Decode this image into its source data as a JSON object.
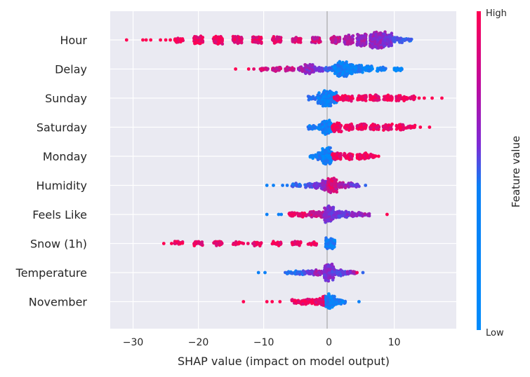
{
  "chart_data": {
    "type": "scatter",
    "subtype": "shap-beeswarm",
    "title": "",
    "xlabel": "SHAP value (impact on model output)",
    "ylabel": "",
    "xlim": [
      -33.5,
      19.5
    ],
    "xticks": [
      -30,
      -20,
      -10,
      0,
      10
    ],
    "xtick_labels": [
      "−30",
      "−20",
      "−10",
      "0",
      "10"
    ],
    "grid": true,
    "colorbar": {
      "title": "Feature value",
      "high_label": "High",
      "low_label": "Low",
      "high_color": "#ff0052",
      "low_color": "#008bfb",
      "mid_color": "#7d2bd6"
    },
    "features": [
      {
        "name": "Hour",
        "range": [
          -31.0,
          12.0
        ],
        "sparse_points": [
          {
            "x": -31.0,
            "v": 1
          },
          {
            "x": -28.5,
            "v": 1
          },
          {
            "x": -28.0,
            "v": 1
          },
          {
            "x": -27.3,
            "v": 1
          },
          {
            "x": -25.8,
            "v": 1
          },
          {
            "x": -25.0,
            "v": 1
          },
          {
            "x": -24.3,
            "v": 1
          },
          {
            "x": -23.6,
            "v": 1
          }
        ],
        "density": [
          {
            "x": -23,
            "c": 4,
            "v": 0.95
          },
          {
            "x": -20,
            "c": 7,
            "v": 0.95
          },
          {
            "x": -17,
            "c": 7,
            "v": 0.95
          },
          {
            "x": -14,
            "c": 6,
            "v": 0.92
          },
          {
            "x": -11,
            "c": 6,
            "v": 0.9
          },
          {
            "x": -8,
            "c": 5,
            "v": 0.88
          },
          {
            "x": -5,
            "c": 5,
            "v": 0.85
          },
          {
            "x": -2,
            "c": 5,
            "v": 0.8
          },
          {
            "x": 1,
            "c": 6,
            "v": 0.75
          },
          {
            "x": 3,
            "c": 8,
            "v": 0.65
          },
          {
            "x": 5,
            "c": 12,
            "v": 0.6
          },
          {
            "x": 7,
            "c": 16,
            "v": 0.6
          },
          {
            "x": 8,
            "c": 17,
            "v": 0.55
          },
          {
            "x": 9,
            "c": 12,
            "v": 0.5
          },
          {
            "x": 10.5,
            "c": 5,
            "v": 0.3
          },
          {
            "x": 12,
            "c": 2,
            "v": 0.2
          }
        ]
      },
      {
        "name": "Delay",
        "range": [
          -14.3,
          10.6
        ],
        "sparse_points": [
          {
            "x": -14.3,
            "v": 1
          },
          {
            "x": -12.3,
            "v": 1
          },
          {
            "x": -11.5,
            "v": 0.9
          },
          {
            "x": -10.5,
            "v": 0.9
          }
        ],
        "density": [
          {
            "x": -10,
            "c": 2,
            "v": 0.85
          },
          {
            "x": -8,
            "c": 3,
            "v": 0.8
          },
          {
            "x": -6,
            "c": 3,
            "v": 0.75
          },
          {
            "x": -4,
            "c": 4,
            "v": 0.6
          },
          {
            "x": -3,
            "c": 9,
            "v": 0.55
          },
          {
            "x": -1.5,
            "c": 3,
            "v": 0.4
          },
          {
            "x": 0,
            "c": 3,
            "v": 0.2
          },
          {
            "x": 1.5,
            "c": 8,
            "v": 0.05
          },
          {
            "x": 2,
            "c": 14,
            "v": 0.05
          },
          {
            "x": 3,
            "c": 10,
            "v": 0.05
          },
          {
            "x": 4.5,
            "c": 6,
            "v": 0.05
          },
          {
            "x": 6,
            "c": 4,
            "v": 0.05
          },
          {
            "x": 8,
            "c": 3,
            "v": 0.05
          },
          {
            "x": 10.5,
            "c": 2,
            "v": 0.05
          }
        ]
      },
      {
        "name": "Sunday",
        "range": [
          -2.8,
          17.3
        ],
        "sparse_points": [
          {
            "x": 13.8,
            "v": 1
          },
          {
            "x": 14.6,
            "v": 1
          },
          {
            "x": 15.8,
            "v": 1
          },
          {
            "x": 17.3,
            "v": 1
          }
        ],
        "density": [
          {
            "x": -2.5,
            "c": 2,
            "v": 0.2
          },
          {
            "x": -1,
            "c": 10,
            "v": 0.05
          },
          {
            "x": -0.3,
            "c": 18,
            "v": 0.05
          },
          {
            "x": 0.5,
            "c": 10,
            "v": 0.05
          },
          {
            "x": 1.5,
            "c": 4,
            "v": 0.95
          },
          {
            "x": 3,
            "c": 5,
            "v": 0.95
          },
          {
            "x": 5,
            "c": 5,
            "v": 0.95
          },
          {
            "x": 7,
            "c": 5,
            "v": 0.95
          },
          {
            "x": 9,
            "c": 5,
            "v": 0.95
          },
          {
            "x": 11,
            "c": 4,
            "v": 0.95
          },
          {
            "x": 12.5,
            "c": 3,
            "v": 0.95
          }
        ]
      },
      {
        "name": "Saturday",
        "range": [
          -2.8,
          15.4
        ],
        "sparse_points": [
          {
            "x": 13.1,
            "v": 1
          },
          {
            "x": 14.0,
            "v": 1
          },
          {
            "x": 15.4,
            "v": 1
          }
        ],
        "density": [
          {
            "x": -2.5,
            "c": 3,
            "v": 0.1
          },
          {
            "x": -1,
            "c": 6,
            "v": 0.05
          },
          {
            "x": -0.3,
            "c": 14,
            "v": 0.05
          },
          {
            "x": 0.3,
            "c": 6,
            "v": 0.05
          },
          {
            "x": 1.2,
            "c": 8,
            "v": 0.95
          },
          {
            "x": 3,
            "c": 5,
            "v": 0.95
          },
          {
            "x": 5,
            "c": 5,
            "v": 0.95
          },
          {
            "x": 7,
            "c": 5,
            "v": 0.95
          },
          {
            "x": 9,
            "c": 5,
            "v": 0.95
          },
          {
            "x": 11,
            "c": 4,
            "v": 0.95
          },
          {
            "x": 12.5,
            "c": 2,
            "v": 0.95
          }
        ]
      },
      {
        "name": "Monday",
        "range": [
          -2.5,
          7.6
        ],
        "sparse_points": [
          {
            "x": 7.6,
            "v": 1
          }
        ],
        "density": [
          {
            "x": -2.2,
            "c": 3,
            "v": 0.05
          },
          {
            "x": -1,
            "c": 6,
            "v": 0.05
          },
          {
            "x": -0.3,
            "c": 16,
            "v": 0.05
          },
          {
            "x": 0.3,
            "c": 6,
            "v": 0.05
          },
          {
            "x": 1.2,
            "c": 5,
            "v": 0.95
          },
          {
            "x": 3,
            "c": 5,
            "v": 0.95
          },
          {
            "x": 5,
            "c": 5,
            "v": 0.95
          },
          {
            "x": 6.5,
            "c": 3,
            "v": 0.95
          }
        ]
      },
      {
        "name": "Humidity",
        "range": [
          -9.5,
          5.6
        ],
        "sparse_points": [
          {
            "x": -9.5,
            "v": 0.05
          },
          {
            "x": -8.5,
            "v": 0.05
          },
          {
            "x": -7.1,
            "v": 0.1
          },
          {
            "x": -6.4,
            "v": 0.1
          },
          {
            "x": 5.6,
            "v": 0.2
          }
        ],
        "density": [
          {
            "x": -5,
            "c": 3,
            "v": 0.2
          },
          {
            "x": -3,
            "c": 3,
            "v": 0.3
          },
          {
            "x": -1.5,
            "c": 5,
            "v": 0.5
          },
          {
            "x": -0.3,
            "c": 10,
            "v": 0.6
          },
          {
            "x": 0.5,
            "c": 14,
            "v": 0.85
          },
          {
            "x": 1.5,
            "c": 5,
            "v": 0.75
          },
          {
            "x": 3,
            "c": 3,
            "v": 0.6
          },
          {
            "x": 4,
            "c": 2,
            "v": 0.4
          }
        ]
      },
      {
        "name": "Feels Like",
        "range": [
          -9.5,
          8.9
        ],
        "sparse_points": [
          {
            "x": -9.5,
            "v": 0.05
          },
          {
            "x": -7.7,
            "v": 0.05
          },
          {
            "x": -7.3,
            "v": 0.05
          },
          {
            "x": 8.9,
            "v": 1
          }
        ],
        "density": [
          {
            "x": -5.5,
            "c": 3,
            "v": 0.95
          },
          {
            "x": -4,
            "c": 3,
            "v": 0.9
          },
          {
            "x": -2.5,
            "c": 4,
            "v": 0.8
          },
          {
            "x": -1,
            "c": 5,
            "v": 0.7
          },
          {
            "x": 0,
            "c": 16,
            "v": 0.5
          },
          {
            "x": 1,
            "c": 6,
            "v": 0.4
          },
          {
            "x": 2.5,
            "c": 4,
            "v": 0.45
          },
          {
            "x": 4,
            "c": 3,
            "v": 0.5
          },
          {
            "x": 5.5,
            "c": 2,
            "v": 0.6
          }
        ]
      },
      {
        "name": "Snow (1h)",
        "range": [
          -25.3,
          0.4
        ],
        "sparse_points": [
          {
            "x": -25.3,
            "v": 1
          },
          {
            "x": -24.1,
            "v": 1
          },
          {
            "x": -13.1,
            "v": 0.95
          },
          {
            "x": -12.4,
            "v": 0.95
          }
        ],
        "density": [
          {
            "x": -23,
            "c": 3,
            "v": 0.95
          },
          {
            "x": -20,
            "c": 3,
            "v": 0.95
          },
          {
            "x": -17,
            "c": 3,
            "v": 0.95
          },
          {
            "x": -14,
            "c": 2,
            "v": 0.95
          },
          {
            "x": -11,
            "c": 3,
            "v": 0.95
          },
          {
            "x": -8,
            "c": 3,
            "v": 0.95
          },
          {
            "x": -5,
            "c": 3,
            "v": 0.95
          },
          {
            "x": -2.5,
            "c": 2,
            "v": 0.95
          },
          {
            "x": 0.2,
            "c": 10,
            "v": 0.05
          }
        ]
      },
      {
        "name": "Temperature",
        "range": [
          -10.8,
          5.2
        ],
        "sparse_points": [
          {
            "x": -10.8,
            "v": 0.05
          },
          {
            "x": -9.8,
            "v": 0.05
          },
          {
            "x": 4.3,
            "v": 0.95
          },
          {
            "x": 5.2,
            "v": 0.2
          }
        ],
        "density": [
          {
            "x": -6,
            "c": 2,
            "v": 0.1
          },
          {
            "x": -4.5,
            "c": 3,
            "v": 0.2
          },
          {
            "x": -3,
            "c": 3,
            "v": 0.4
          },
          {
            "x": -1.5,
            "c": 4,
            "v": 0.6
          },
          {
            "x": 0,
            "c": 16,
            "v": 0.5
          },
          {
            "x": 1.2,
            "c": 5,
            "v": 0.4
          },
          {
            "x": 2.5,
            "c": 3,
            "v": 0.35
          },
          {
            "x": 3.5,
            "c": 2,
            "v": 0.6
          }
        ]
      },
      {
        "name": "November",
        "range": [
          -13.1,
          4.6
        ],
        "sparse_points": [
          {
            "x": -13.1,
            "v": 1
          },
          {
            "x": -9.5,
            "v": 1
          },
          {
            "x": -8.7,
            "v": 1
          },
          {
            "x": -7.5,
            "v": 1
          },
          {
            "x": 4.6,
            "v": 0.05
          }
        ],
        "density": [
          {
            "x": -5,
            "c": 3,
            "v": 0.95
          },
          {
            "x": -3.5,
            "c": 4,
            "v": 0.95
          },
          {
            "x": -2,
            "c": 5,
            "v": 0.95
          },
          {
            "x": -0.5,
            "c": 10,
            "v": 0.9
          },
          {
            "x": 0.2,
            "c": 14,
            "v": 0.05
          },
          {
            "x": 1.2,
            "c": 4,
            "v": 0.05
          },
          {
            "x": 2,
            "c": 2,
            "v": 0.05
          }
        ]
      }
    ]
  }
}
